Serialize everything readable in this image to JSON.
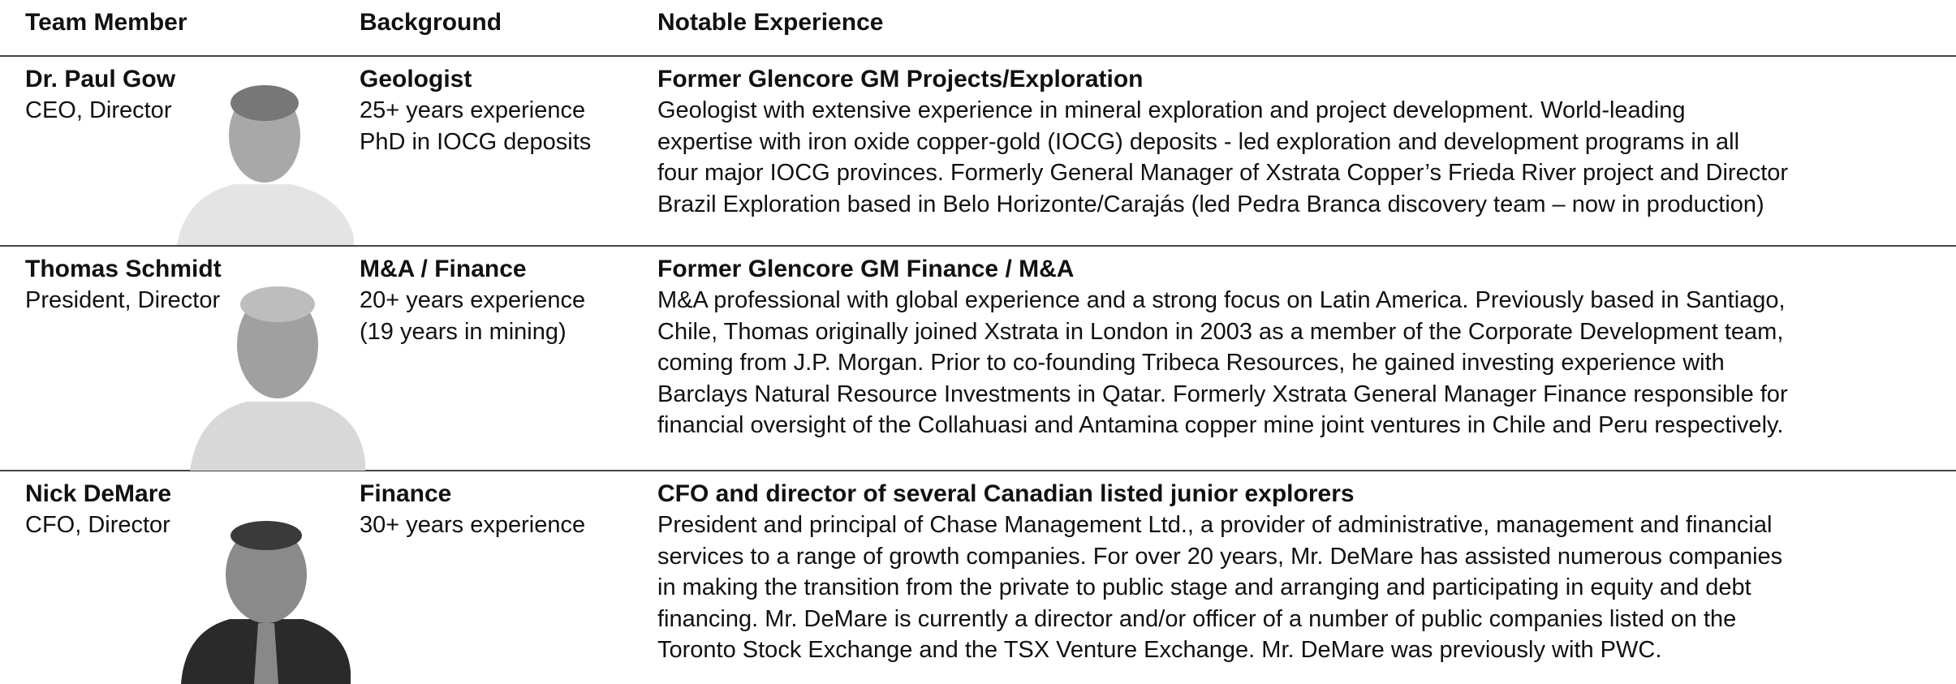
{
  "table": {
    "headers": [
      "Team Member",
      "Background",
      "Notable Experience"
    ],
    "rows": [
      {
        "name": "Dr. Paul Gow",
        "role": "CEO, Director",
        "background_title": "Geologist",
        "background_lines": [
          "25+ years experience",
          "PhD in IOCG deposits"
        ],
        "experience_title": "Former Glencore GM Projects/Exploration",
        "experience_lines": [
          "Geologist with extensive experience in mineral exploration and project development. World-leading",
          "expertise with iron oxide copper-gold (IOCG) deposits - led exploration and development programs in all",
          "four major IOCG provinces. Formerly General Manager of Xstrata Copper’s Frieda River project and Director",
          "Brazil Exploration based in Belo Horizonte/Carajás (led Pedra Branca discovery team – now in production)"
        ]
      },
      {
        "name": "Thomas Schmidt",
        "role": "President, Director",
        "background_title": "M&A / Finance",
        "background_lines": [
          "20+ years experience",
          "(19 years in mining)"
        ],
        "experience_title": "Former Glencore GM Finance / M&A",
        "experience_lines": [
          "M&A professional with global experience and a strong focus on Latin America. Previously based in Santiago,",
          "Chile, Thomas originally joined Xstrata in London in 2003 as a member of the Corporate Development team,",
          "coming from J.P. Morgan. Prior to co-founding Tribeca Resources, he gained investing experience with",
          "Barclays Natural Resource Investments in Qatar.  Formerly Xstrata General Manager Finance responsible for",
          "financial oversight of the Collahuasi and Antamina copper mine joint ventures in Chile and Peru respectively."
        ]
      },
      {
        "name": "Nick DeMare",
        "role": "CFO, Director",
        "background_title": "Finance",
        "background_lines": [
          "30+ years experience"
        ],
        "experience_title": "CFO and director of several Canadian listed junior explorers",
        "experience_lines": [
          "President and principal of Chase Management Ltd., a provider of administrative, management and financial",
          "services to a range of growth companies. For over 20 years, Mr. DeMare has assisted numerous companies",
          "in making the transition from the private to public stage and arranging and participating in equity and debt",
          "financing. Mr. DeMare is currently a director and/or officer of a number of public companies listed on the",
          "Toronto Stock Exchange and the TSX Venture Exchange. Mr. DeMare was previously with PWC."
        ]
      }
    ]
  }
}
